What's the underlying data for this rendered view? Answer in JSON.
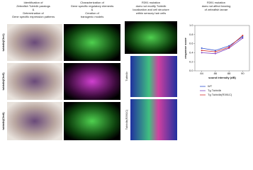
{
  "columns": [
    {
      "lines": [
        "Identification of",
        "Zebrafish Tubb4b paralogs",
        "&",
        "Determination of",
        "Gene specific expression patterns"
      ]
    },
    {
      "lines": [
        "Characterization of",
        "Gene specific regulatory elements",
        "&",
        "Creation of",
        "transgenic models"
      ]
    },
    {
      "lines": [
        "R391 mutation",
        "does not modify Tubb4b",
        "localization and cell structure",
        "within sensory hair cells"
      ]
    },
    {
      "lines": [
        "R391 mutation",
        "does not affect hearing",
        "of zebrafish larvae"
      ]
    }
  ],
  "row_labels": [
    "tubb4b(Chr1)",
    "tubb4b(Chr5)",
    "tubb4b(Chr8)"
  ],
  "panel_labels": [
    "Tubb4b",
    "Tubb4b(R391C)"
  ],
  "chart_data": {
    "type": "line",
    "x_label": "sound intensity (dB)",
    "y_label": "response score",
    "x": [
      84,
      86,
      88,
      90
    ],
    "xlim": [
      83,
      91
    ],
    "xticks": [
      84,
      86,
      88,
      90
    ],
    "ylim": [
      0,
      1
    ],
    "yticks": [
      {
        "value": 0,
        "label": "0.0"
      },
      0.2,
      0.4,
      0.6,
      0.8,
      {
        "value": 1,
        "label": "1.0"
      }
    ],
    "series": [
      {
        "name": "WT",
        "color": "#3050d0",
        "values": [
          0.5,
          0.45,
          0.55,
          0.75
        ]
      },
      {
        "name": "Tg Tubb4b",
        "color": "#8040c0",
        "values": [
          0.4,
          0.38,
          0.5,
          0.72
        ]
      },
      {
        "name": "Tg Tubb4b(R391C)",
        "color": "#d03030",
        "values": [
          0.45,
          0.42,
          0.52,
          0.78
        ]
      }
    ],
    "legend": "lower-center"
  }
}
